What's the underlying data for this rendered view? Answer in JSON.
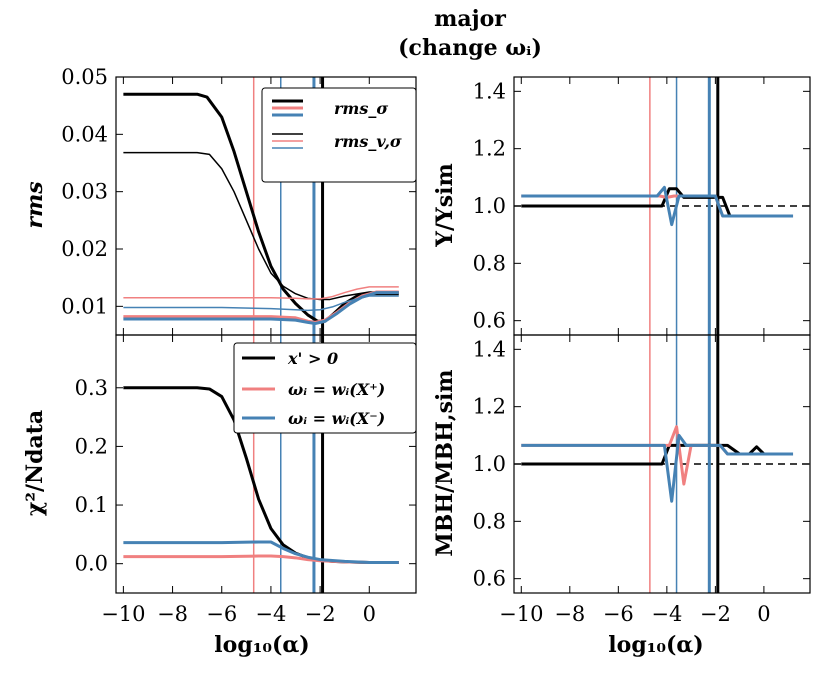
{
  "title": {
    "line1": "major",
    "line2": "(change ωᵢ)"
  },
  "colors": {
    "black": "#000000",
    "red": "#f08080",
    "blue": "#4682b4"
  },
  "x_axis_label": "log₁₀(α)",
  "x_ticks": [
    -10,
    -8,
    -6,
    -4,
    -2,
    0
  ],
  "x_tick_labels": [
    "−10",
    "−8",
    "−6",
    "−4",
    "−2",
    "0"
  ],
  "xlim": [
    -10.3,
    1.9
  ],
  "vlines": [
    {
      "x": -4.7,
      "color": "red",
      "width": 1.5
    },
    {
      "x": -3.6,
      "color": "blue",
      "width": 1.5
    },
    {
      "x": -2.25,
      "color": "blue",
      "width": 3
    },
    {
      "x": -1.9,
      "color": "black",
      "width": 3
    }
  ],
  "chart_data": [
    {
      "id": "rms",
      "type": "line",
      "ylabel": "rms",
      "ylim": [
        0.005,
        0.05
      ],
      "y_ticks": [
        0.01,
        0.02,
        0.03,
        0.04,
        0.05
      ],
      "y_tick_labels": [
        "0.01",
        "0.02",
        "0.03",
        "0.04",
        "0.05"
      ],
      "legend": {
        "position": "top-right",
        "entries": [
          "rms_σ",
          "rms_v,σ"
        ]
      },
      "series": [
        {
          "name": "rms_σ, x'>0",
          "color": "black",
          "width": 3,
          "x": [
            -10,
            -7,
            -6.6,
            -6,
            -5.5,
            -5,
            -4.5,
            -4,
            -3.5,
            -3,
            -2.5,
            -2.1,
            -1.8,
            -1.5,
            -1,
            -0.5,
            0,
            1.2
          ],
          "y": [
            0.047,
            0.047,
            0.0465,
            0.043,
            0.037,
            0.03,
            0.023,
            0.017,
            0.013,
            0.0105,
            0.0085,
            0.0074,
            0.0074,
            0.0085,
            0.0105,
            0.0118,
            0.0122,
            0.0122
          ]
        },
        {
          "name": "rms_v,σ, x'>0",
          "color": "black",
          "width": 1.5,
          "x": [
            -10,
            -7,
            -6.5,
            -6,
            -5.5,
            -5,
            -4.5,
            -4,
            -3.5,
            -3,
            -2.5,
            -2,
            -1.6,
            -1,
            0,
            1.2
          ],
          "y": [
            0.0368,
            0.0368,
            0.0365,
            0.034,
            0.03,
            0.025,
            0.02,
            0.0158,
            0.0135,
            0.0122,
            0.0114,
            0.0112,
            0.0112,
            0.0118,
            0.0125,
            0.0125
          ]
        },
        {
          "name": "rms_σ, w(X+)",
          "color": "red",
          "width": 3,
          "x": [
            -10,
            -6,
            -4,
            -3,
            -2.5,
            -2.2,
            -1.8,
            -1.3,
            -0.8,
            -0.3,
            0.3,
            1.2
          ],
          "y": [
            0.0082,
            0.0082,
            0.0082,
            0.008,
            0.0074,
            0.0072,
            0.0076,
            0.009,
            0.0106,
            0.0118,
            0.0125,
            0.0125
          ]
        },
        {
          "name": "rms_v,σ, w(X+)",
          "color": "red",
          "width": 1.5,
          "x": [
            -10,
            -6,
            -4,
            -3,
            -2.5,
            -2,
            -1.5,
            -1,
            -0.5,
            0,
            1.2
          ],
          "y": [
            0.0115,
            0.0115,
            0.0115,
            0.0114,
            0.0113,
            0.0113,
            0.0117,
            0.0124,
            0.013,
            0.0134,
            0.0134
          ]
        },
        {
          "name": "rms_σ, w(X−)",
          "color": "blue",
          "width": 3,
          "x": [
            -10,
            -6,
            -4,
            -3,
            -2.5,
            -2.2,
            -1.8,
            -1.3,
            -0.8,
            -0.3,
            0.3,
            1.2
          ],
          "y": [
            0.0078,
            0.0078,
            0.0078,
            0.0076,
            0.0072,
            0.007,
            0.0074,
            0.0088,
            0.0104,
            0.0116,
            0.0124,
            0.0124
          ]
        },
        {
          "name": "rms_v,σ, w(X−)",
          "color": "blue",
          "width": 1.5,
          "x": [
            -10,
            -6,
            -4,
            -3,
            -2.5,
            -2,
            -1.5,
            -1,
            -0.5,
            0,
            1.2
          ],
          "y": [
            0.0098,
            0.0098,
            0.0096,
            0.0094,
            0.0093,
            0.0094,
            0.0099,
            0.0107,
            0.0113,
            0.0118,
            0.0118
          ]
        }
      ]
    },
    {
      "id": "upsilon",
      "type": "line",
      "ylabel": "Υ/Υsim",
      "ylim": [
        0.55,
        1.45
      ],
      "y_ticks": [
        0.6,
        0.8,
        1.0,
        1.2,
        1.4
      ],
      "y_tick_labels": [
        "0.6",
        "0.8",
        "1.0",
        "1.2",
        "1.4"
      ],
      "reference_line": 1.0,
      "series": [
        {
          "name": "x'>0",
          "color": "black",
          "width": 3,
          "x": [
            -10,
            -4.2,
            -3.9,
            -3.6,
            -3.3,
            -2,
            -1.7,
            -1.4,
            1.2
          ],
          "y": [
            1.0,
            1.0,
            1.06,
            1.06,
            1.03,
            1.03,
            1.03,
            0.965,
            0.965
          ]
        },
        {
          "name": "w(X+)",
          "color": "red",
          "width": 3,
          "x": [
            -10,
            -4.3,
            -4,
            -3.7,
            -2,
            -1.7,
            1.2
          ],
          "y": [
            1.035,
            1.035,
            1.03,
            1.035,
            1.035,
            0.965,
            0.965
          ]
        },
        {
          "name": "w(X−)",
          "color": "blue",
          "width": 3,
          "x": [
            -10,
            -4.4,
            -4.1,
            -3.8,
            -3.5,
            -2,
            -1.7,
            1.2
          ],
          "y": [
            1.035,
            1.035,
            1.065,
            0.935,
            1.035,
            1.035,
            0.965,
            0.965
          ]
        }
      ]
    },
    {
      "id": "chi2",
      "type": "line",
      "ylabel": "χ²/Ndata",
      "ylim": [
        -0.05,
        0.39
      ],
      "y_ticks": [
        0.0,
        0.1,
        0.2,
        0.3
      ],
      "y_tick_labels": [
        "0.0",
        "0.1",
        "0.2",
        "0.3"
      ],
      "legend": {
        "position": "top-right",
        "entries": [
          "x' > 0",
          "ωᵢ = wᵢ(X⁺)",
          "ωᵢ = wᵢ(X⁻)"
        ]
      },
      "series": [
        {
          "name": "x'>0",
          "color": "black",
          "width": 3,
          "x": [
            -10,
            -7,
            -6.5,
            -6,
            -5.5,
            -5,
            -4.5,
            -4,
            -3.5,
            -3,
            -2.5,
            -2,
            -1.5,
            -1,
            0,
            1.2
          ],
          "y": [
            0.3,
            0.3,
            0.298,
            0.285,
            0.245,
            0.18,
            0.11,
            0.06,
            0.032,
            0.018,
            0.01,
            0.006,
            0.004,
            0.003,
            0.002,
            0.002
          ]
        },
        {
          "name": "ωᵢ = wᵢ(X⁺)",
          "color": "red",
          "width": 3,
          "x": [
            -10,
            -6,
            -4.5,
            -4,
            -3.5,
            -3,
            -2.5,
            -2,
            -1,
            0,
            1.2
          ],
          "y": [
            0.012,
            0.012,
            0.013,
            0.013,
            0.012,
            0.01,
            0.007,
            0.005,
            0.003,
            0.002,
            0.002
          ]
        },
        {
          "name": "ωᵢ = wᵢ(X⁻)",
          "color": "blue",
          "width": 3,
          "x": [
            -10,
            -6,
            -4.5,
            -4,
            -3.5,
            -3,
            -2.5,
            -2,
            -1,
            0,
            1.2
          ],
          "y": [
            0.036,
            0.036,
            0.037,
            0.037,
            0.026,
            0.017,
            0.011,
            0.007,
            0.004,
            0.002,
            0.002
          ]
        }
      ]
    },
    {
      "id": "mbh",
      "type": "line",
      "ylabel": "MBH/MBH,sim",
      "ylim": [
        0.55,
        1.45
      ],
      "y_ticks": [
        0.6,
        0.8,
        1.0,
        1.2,
        1.4
      ],
      "y_tick_labels": [
        "0.6",
        "0.8",
        "1.0",
        "1.2",
        "1.4"
      ],
      "reference_line": 1.0,
      "series": [
        {
          "name": "x'>0",
          "color": "black",
          "width": 3,
          "x": [
            -10,
            -4.2,
            -3.9,
            -3.6,
            -2,
            -1.5,
            -1,
            -0.6,
            -0.3,
            0,
            1.2
          ],
          "y": [
            1.0,
            1.0,
            1.065,
            1.065,
            1.065,
            1.065,
            1.035,
            1.035,
            1.06,
            1.035,
            1.035
          ]
        },
        {
          "name": "w(X+)",
          "color": "red",
          "width": 3,
          "x": [
            -10,
            -4.2,
            -3.9,
            -3.6,
            -3.3,
            -3,
            -1.8,
            -1.5,
            -1.2,
            1.2
          ],
          "y": [
            1.065,
            1.065,
            1.065,
            1.13,
            0.93,
            1.065,
            1.065,
            1.035,
            1.035,
            1.035
          ]
        },
        {
          "name": "w(X−)",
          "color": "blue",
          "width": 3,
          "x": [
            -10,
            -4.1,
            -3.8,
            -3.5,
            -3.2,
            -1.8,
            -1.5,
            1.2
          ],
          "y": [
            1.065,
            1.065,
            0.87,
            1.1,
            1.065,
            1.065,
            1.035,
            1.035
          ]
        }
      ]
    }
  ]
}
